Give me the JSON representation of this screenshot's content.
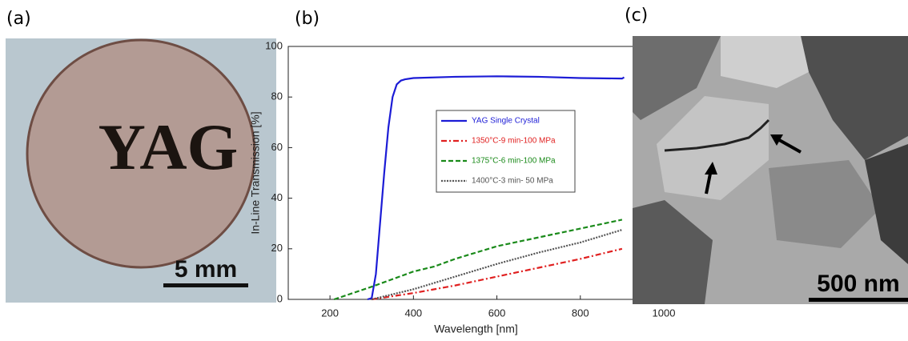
{
  "panel_labels": [
    "(a)",
    "(b)",
    "(c)"
  ],
  "image_a": {
    "text": "YAG",
    "scale_bar": "5 mm"
  },
  "image_c": {
    "scale_bar": "500 nm"
  },
  "chart_data": {
    "type": "line",
    "xlabel": "Wavelength [nm]",
    "ylabel": "In-Line Transmission [%]",
    "xlim": [
      100,
      1000
    ],
    "xticks": [
      200,
      400,
      600,
      800,
      1000
    ],
    "ylim": [
      0,
      100
    ],
    "yticks": [
      0,
      20,
      40,
      60,
      80,
      100
    ],
    "series": [
      {
        "name": "YAG Single Crystal",
        "color": "#1c1cd6",
        "dash": "solid",
        "x": [
          290,
          300,
          310,
          320,
          330,
          340,
          350,
          360,
          370,
          380,
          400,
          500,
          600,
          700,
          800,
          900,
          905
        ],
        "values": [
          0,
          0.5,
          10,
          30,
          50,
          68,
          80,
          85,
          86.5,
          87,
          87.5,
          88,
          88.2,
          88,
          87.5,
          87.3,
          87.8
        ]
      },
      {
        "name": "1350°C-9 min-100 MPa",
        "color": "#e02020",
        "dash": "dashdot",
        "x": [
          300,
          400,
          500,
          600,
          700,
          800,
          900
        ],
        "values": [
          0,
          2.5,
          5.5,
          9,
          12.5,
          16,
          20
        ]
      },
      {
        "name": "1375°C-6 min-100 MPa",
        "color": "#1a8a1a",
        "dash": "dashed",
        "x": [
          210,
          300,
          400,
          450,
          500,
          600,
          700,
          800,
          900
        ],
        "values": [
          0,
          5,
          11,
          13,
          16,
          21,
          24.5,
          28,
          31.5
        ]
      },
      {
        "name": "1400°C-3 min- 50 MPa",
        "color": "#555555",
        "dash": "dotted",
        "x": [
          300,
          400,
          500,
          600,
          700,
          800,
          900
        ],
        "values": [
          0,
          4,
          9,
          14,
          18.5,
          22.5,
          27.5
        ]
      }
    ]
  }
}
